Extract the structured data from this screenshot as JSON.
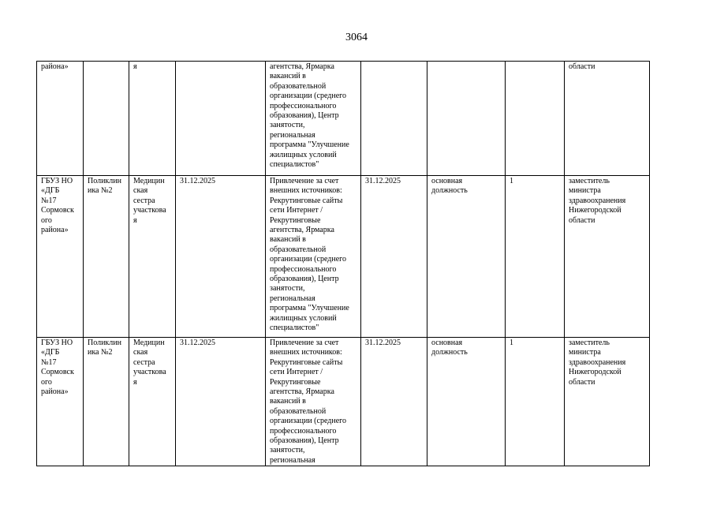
{
  "page_number": "3064",
  "rows": [
    {
      "org": "района»",
      "unit": "",
      "position": "я",
      "date1": "",
      "method": "агентства, Ярмарка\nвакансий в\nобразовательной\nорганизации (среднего\nпрофессионального\nобразования), Центр\nзанятости,\nрегиональная\nпрограмма \"Улучшение\nжилищных условий\nспециалистов\"",
      "date2": "",
      "type": "",
      "count": "",
      "responsible": "области"
    },
    {
      "org": "ГБУЗ НО\n«ДГБ\n№17\nСормовск\nого\nрайона»",
      "unit": "Поликлин\nика №2",
      "position": "Медицин\nская\nсестра\nучасткова\nя",
      "date1": "31.12.2025",
      "method": "Привлечение за счет\nвнешних источников:\nРекрутинговые сайты\nсети Интернет /\nРекрутинговые\nагентства, Ярмарка\nвакансий в\nобразовательной\nорганизации (среднего\nпрофессионального\nобразования), Центр\nзанятости,\nрегиональная\nпрограмма \"Улучшение\nжилищных условий\nспециалистов\"",
      "date2": "31.12.2025",
      "type": "основная\nдолжность",
      "count": "1",
      "responsible": "заместитель\nминистра\nздравоохранения\nНижегородской\nобласти"
    },
    {
      "org": "ГБУЗ НО\n«ДГБ\n№17\nСормовск\nого\nрайона»",
      "unit": "Поликлин\nика №2",
      "position": "Медицин\nская\nсестра\nучасткова\nя",
      "date1": "31.12.2025",
      "method": "Привлечение за счет\nвнешних источников:\nРекрутинговые сайты\nсети Интернет /\nРекрутинговые\nагентства, Ярмарка\nвакансий в\nобразовательной\nорганизации (среднего\nпрофессионального\nобразования), Центр\nзанятости,\nрегиональная",
      "date2": "31.12.2025",
      "type": "основная\nдолжность",
      "count": "1",
      "responsible": "заместитель\nминистра\nздравоохранения\nНижегородской\nобласти"
    }
  ]
}
